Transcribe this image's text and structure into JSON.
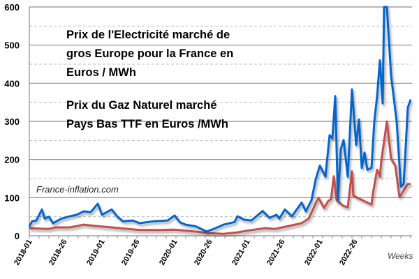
{
  "chart_data": {
    "type": "line",
    "title": "",
    "xlabel": "Weeks",
    "ylabel": "",
    "ylim": [
      0,
      600
    ],
    "yticks": [
      "0",
      "100",
      "200",
      "300",
      "400",
      "500",
      "600"
    ],
    "xticks": [
      "2018-01",
      "2018-26",
      "2019-01",
      "2019-26",
      "2020-01",
      "2020-26",
      "2021-01",
      "2021-26",
      "2022-01",
      "2022-26"
    ],
    "grid": {
      "major": "solid every 100",
      "minor": "dashed every 50"
    },
    "legend_placement": "top-left inside",
    "watermark": "France-inflation.com",
    "series": [
      {
        "name": "Prix de l'Electricité marché de gros Europe pour la France en Euros / MWh",
        "legend_lines": [
          "Prix de l'Electricité marché de",
          "gros Europe pour la France en",
          "Euros / MWh"
        ],
        "color": "#0066cc",
        "points": [
          [
            "2018-01",
            24
          ],
          [
            "2018-03",
            38
          ],
          [
            "2018-06",
            40
          ],
          [
            "2018-10",
            69
          ],
          [
            "2018-12",
            45
          ],
          [
            "2018-15",
            50
          ],
          [
            "2018-18",
            33
          ],
          [
            "2018-24",
            45
          ],
          [
            "2018-30",
            51
          ],
          [
            "2018-35",
            55
          ],
          [
            "2018-40",
            64
          ],
          [
            "2018-45",
            62
          ],
          [
            "2018-50",
            84
          ],
          [
            "2019-01",
            55
          ],
          [
            "2019-08",
            69
          ],
          [
            "2019-12",
            50
          ],
          [
            "2019-16",
            38
          ],
          [
            "2019-23",
            40
          ],
          [
            "2019-28",
            33
          ],
          [
            "2019-38",
            38
          ],
          [
            "2019-48",
            40
          ],
          [
            "2020-01",
            53
          ],
          [
            "2020-05",
            35
          ],
          [
            "2020-09",
            29
          ],
          [
            "2020-16",
            25
          ],
          [
            "2020-24",
            11
          ],
          [
            "2020-29",
            18
          ],
          [
            "2020-36",
            29
          ],
          [
            "2020-44",
            36
          ],
          [
            "2020-46",
            51
          ],
          [
            "2020-51",
            42
          ],
          [
            "2021-04",
            40
          ],
          [
            "2021-12",
            65
          ],
          [
            "2021-17",
            47
          ],
          [
            "2021-22",
            55
          ],
          [
            "2021-24",
            45
          ],
          [
            "2021-28",
            69
          ],
          [
            "2021-33",
            51
          ],
          [
            "2021-40",
            87
          ],
          [
            "2021-43",
            64
          ],
          [
            "2021-47",
            93
          ],
          [
            "2021-50",
            147
          ],
          [
            "2022-01",
            184
          ],
          [
            "2022-05",
            155
          ],
          [
            "2022-08",
            264
          ],
          [
            "2022-10",
            255
          ],
          [
            "2022-12",
            366
          ],
          [
            "2022-14",
            93
          ],
          [
            "2022-16",
            227
          ],
          [
            "2022-18",
            251
          ],
          [
            "2022-21",
            155
          ],
          [
            "2022-24",
            384
          ],
          [
            "2022-27",
            238
          ],
          [
            "2022-29",
            305
          ],
          [
            "2022-31",
            178
          ],
          [
            "2022-33",
            218
          ],
          [
            "2022-35",
            173
          ],
          [
            "2022-38",
            178
          ],
          [
            "2022-40",
            300
          ],
          [
            "2022-42",
            366
          ],
          [
            "2022-44",
            460
          ],
          [
            "2022-46",
            347
          ],
          [
            "2022-47",
            600
          ],
          [
            "2022-49",
            600
          ],
          [
            "2022-52",
            420
          ],
          [
            "2023-04",
            300
          ],
          [
            "2023-07",
            129
          ],
          [
            "2023-09",
            136
          ],
          [
            "2023-12",
            336
          ],
          [
            "2023-14",
            357
          ]
        ]
      },
      {
        "name": "Prix du Gaz Naturel marché Pays Bas TTF en Euros /MWh",
        "legend_lines": [
          "Prix du Gaz Naturel marché",
          "Pays Bas TTF en Euros /MWh"
        ],
        "color": "#c0504d",
        "points": [
          [
            "2018-01",
            20
          ],
          [
            "2018-15",
            18
          ],
          [
            "2018-20",
            22
          ],
          [
            "2018-30",
            22
          ],
          [
            "2018-40",
            29
          ],
          [
            "2018-50",
            25
          ],
          [
            "2019-08",
            22
          ],
          [
            "2019-28",
            15
          ],
          [
            "2019-43",
            15
          ],
          [
            "2020-01",
            16
          ],
          [
            "2020-16",
            11
          ],
          [
            "2020-26",
            7
          ],
          [
            "2020-36",
            5
          ],
          [
            "2020-46",
            9
          ],
          [
            "2021-04",
            15
          ],
          [
            "2021-14",
            20
          ],
          [
            "2021-21",
            18
          ],
          [
            "2021-26",
            22
          ],
          [
            "2021-40",
            33
          ],
          [
            "2021-45",
            45
          ],
          [
            "2021-52",
            100
          ],
          [
            "2022-04",
            73
          ],
          [
            "2022-07",
            91
          ],
          [
            "2022-09",
            96
          ],
          [
            "2022-11",
            156
          ],
          [
            "2022-13",
            93
          ],
          [
            "2022-18",
            78
          ],
          [
            "2022-21",
            75
          ],
          [
            "2022-24",
            169
          ],
          [
            "2022-25",
            105
          ],
          [
            "2022-30",
            96
          ],
          [
            "2022-35",
            87
          ],
          [
            "2022-38",
            82
          ],
          [
            "2022-39",
            111
          ],
          [
            "2022-42",
            173
          ],
          [
            "2022-44",
            155
          ],
          [
            "2022-45",
            196
          ],
          [
            "2022-49",
            300
          ],
          [
            "2022-52",
            202
          ],
          [
            "2023-03",
            184
          ],
          [
            "2023-06",
            102
          ],
          [
            "2023-09",
            118
          ],
          [
            "2023-12",
            136
          ],
          [
            "2023-14",
            136
          ]
        ]
      }
    ]
  }
}
